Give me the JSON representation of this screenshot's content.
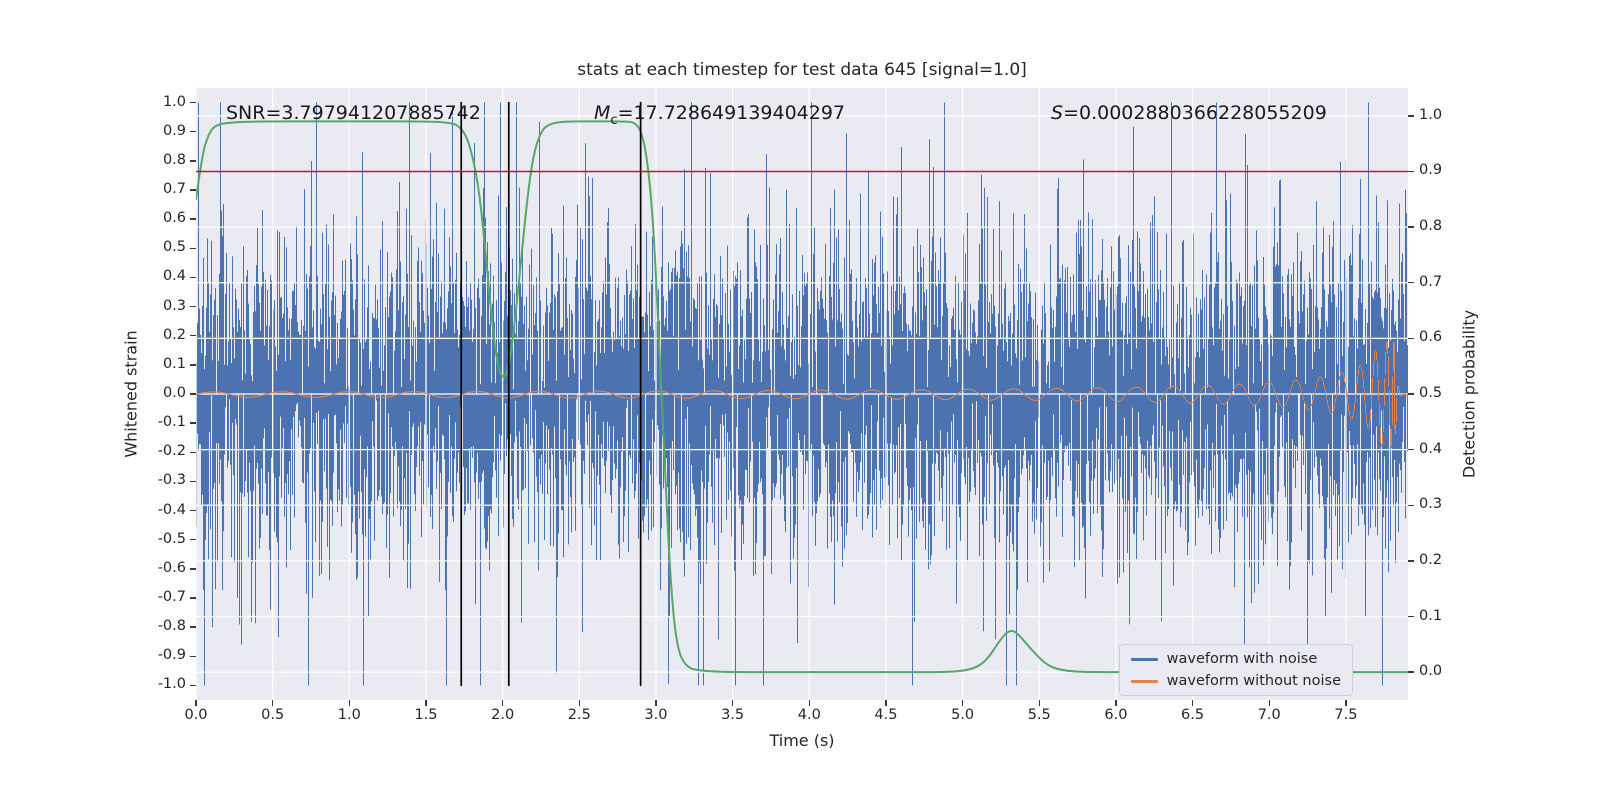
{
  "title": "stats at each timestep for test data 645 [signal=1.0]",
  "axes": {
    "x_label": "Time (s)",
    "left_label": "Whitened strain",
    "right_label": "Detection probability"
  },
  "annotations": {
    "snr": "SNR=3.797941207885742",
    "chirp_mass_symbol": "M",
    "chirp_mass_sub": "c",
    "chirp_mass_value": "=17.728649139404297",
    "s_symbol": "S",
    "s_value": "=0.0002880366228055209"
  },
  "legend": {
    "items": [
      {
        "label": "waveform with noise",
        "color": "#4c72b0"
      },
      {
        "label": "waveform without noise",
        "color": "#dd8452"
      }
    ]
  },
  "chart_data": {
    "type": "line",
    "title": "stats at each timestep for test data 645 [signal=1.0]",
    "xlabel": "Time (s)",
    "background": "#eaeaf2",
    "grid": true,
    "grid_color": "#ffffff",
    "x_range": [
      0.0,
      7.905
    ],
    "x_ticks": [
      0.0,
      0.5,
      1.0,
      1.5,
      2.0,
      2.5,
      3.0,
      3.5,
      4.0,
      4.5,
      5.0,
      5.5,
      6.0,
      6.5,
      7.0,
      7.5
    ],
    "left_axis": {
      "label": "Whitened strain",
      "range": [
        -1.05,
        1.05
      ],
      "ticks": [
        1.0,
        0.9,
        0.8,
        0.7,
        0.6,
        0.5,
        0.4,
        0.3,
        0.2,
        0.1,
        0.0,
        -0.1,
        -0.2,
        -0.3,
        -0.4,
        -0.5,
        -0.6,
        -0.7,
        -0.8,
        -0.9,
        -1.0
      ]
    },
    "right_axis": {
      "label": "Detection probability",
      "range": [
        -0.05,
        1.05
      ],
      "ticks": [
        1.0,
        0.9,
        0.8,
        0.7,
        0.6,
        0.5,
        0.4,
        0.3,
        0.2,
        0.1,
        0.0
      ]
    },
    "threshold_line": {
      "axis": "right",
      "value": 0.9,
      "color": "#b22222"
    },
    "event_lines": {
      "color": "#000000",
      "x_values": [
        1.73,
        2.04,
        2.9
      ]
    },
    "annotations": [
      {
        "name": "snr",
        "text": "SNR=3.797941207885742",
        "x": 0.21,
        "strain_y": 0.93
      },
      {
        "name": "chirp-mass",
        "text": "Mc=17.728649139404297",
        "x": 2.6,
        "strain_y": 0.93
      },
      {
        "name": "s-statistic",
        "text": "S=0.0002880366228055209",
        "x": 5.57,
        "strain_y": 0.93
      }
    ],
    "series": [
      {
        "name": "waveform with noise",
        "type": "noise",
        "axis": "left",
        "color": "#4c72b0",
        "seed": 645,
        "std": 0.26,
        "samples_per_pixel": 5,
        "spike_probability": 0.04,
        "spike_scale": 2.3,
        "clip": 1.0
      },
      {
        "name": "waveform without noise",
        "type": "chirp",
        "axis": "left",
        "color": "#dd8452",
        "base_amplitude": 0.009,
        "peak_amplitude": 0.18,
        "merger_time": 7.82,
        "base_frequency": 2.2,
        "amplitude_exponent": -0.68,
        "frequency_exponent": -0.4,
        "ringdown_decay": 0.012
      },
      {
        "name": "detection probability",
        "type": "line",
        "axis": "right",
        "color": "#55a868",
        "points": [
          [
            0.0,
            0.85
          ],
          [
            0.04,
            0.93
          ],
          [
            0.08,
            0.966
          ],
          [
            0.12,
            0.982
          ],
          [
            0.2,
            0.988
          ],
          [
            0.4,
            0.99
          ],
          [
            0.8,
            0.99
          ],
          [
            1.2,
            0.99
          ],
          [
            1.5,
            0.99
          ],
          [
            1.65,
            0.988
          ],
          [
            1.72,
            0.982
          ],
          [
            1.78,
            0.955
          ],
          [
            1.84,
            0.88
          ],
          [
            1.88,
            0.78
          ],
          [
            1.92,
            0.66
          ],
          [
            1.96,
            0.56
          ],
          [
            2.0,
            0.525
          ],
          [
            2.04,
            0.545
          ],
          [
            2.08,
            0.63
          ],
          [
            2.12,
            0.74
          ],
          [
            2.16,
            0.85
          ],
          [
            2.2,
            0.93
          ],
          [
            2.25,
            0.972
          ],
          [
            2.3,
            0.985
          ],
          [
            2.4,
            0.99
          ],
          [
            2.6,
            0.99
          ],
          [
            2.8,
            0.99
          ],
          [
            2.86,
            0.988
          ],
          [
            2.9,
            0.975
          ],
          [
            2.94,
            0.93
          ],
          [
            2.98,
            0.82
          ],
          [
            3.02,
            0.6
          ],
          [
            3.06,
            0.35
          ],
          [
            3.1,
            0.14
          ],
          [
            3.14,
            0.04
          ],
          [
            3.2,
            0.008
          ],
          [
            3.3,
            0.002
          ],
          [
            3.5,
            0.0
          ],
          [
            4.0,
            0.0
          ],
          [
            4.5,
            0.0
          ],
          [
            4.9,
            0.0
          ],
          [
            5.05,
            0.004
          ],
          [
            5.15,
            0.018
          ],
          [
            5.25,
            0.06
          ],
          [
            5.3,
            0.075
          ],
          [
            5.35,
            0.073
          ],
          [
            5.45,
            0.04
          ],
          [
            5.55,
            0.012
          ],
          [
            5.65,
            0.003
          ],
          [
            5.8,
            0.0
          ],
          [
            6.5,
            0.0
          ],
          [
            7.0,
            0.0
          ],
          [
            7.5,
            0.0
          ],
          [
            7.905,
            0.0
          ]
        ]
      }
    ]
  }
}
